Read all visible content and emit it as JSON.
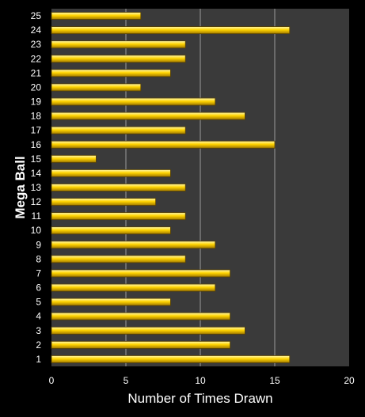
{
  "chart_data": {
    "type": "bar",
    "orientation": "horizontal",
    "title": "",
    "xlabel": "Number of Times Drawn",
    "ylabel": "Mega Ball",
    "xlim": [
      0,
      20
    ],
    "xticks": [
      "0",
      "5",
      "10",
      "15",
      "20"
    ],
    "categories": [
      "1",
      "2",
      "3",
      "4",
      "5",
      "6",
      "7",
      "8",
      "9",
      "10",
      "11",
      "12",
      "13",
      "14",
      "15",
      "16",
      "17",
      "18",
      "19",
      "20",
      "21",
      "22",
      "23",
      "24",
      "25"
    ],
    "values": [
      16,
      12,
      13,
      12,
      8,
      11,
      12,
      9,
      11,
      8,
      9,
      7,
      9,
      8,
      3,
      15,
      9,
      13,
      11,
      6,
      8,
      9,
      9,
      16,
      6
    ],
    "grid": true,
    "colors": {
      "background": "#000000",
      "plot_area": "#3a3a3a",
      "bar_fill_top": "#fff9b0",
      "bar_fill_mid": "#ffd400",
      "bar_fill_bottom": "#a07800",
      "bar_stroke": "#5a4300",
      "grid": "#9a9a9a",
      "text": "#ffffff"
    }
  }
}
